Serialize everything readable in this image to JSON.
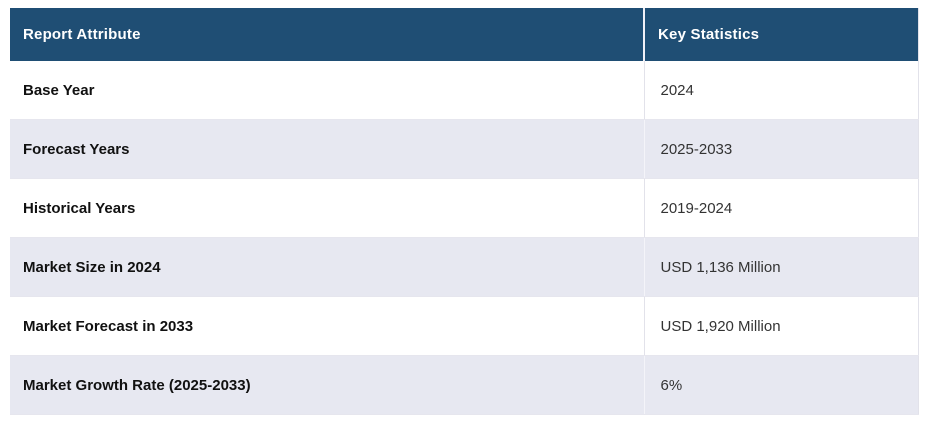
{
  "colors": {
    "header_bg": "#1F4E74",
    "header_text": "#FFFFFF",
    "row_bg": "#FFFFFF",
    "row_alt_bg": "#E7E8F1",
    "border": "#E2E2EA",
    "attribute_text": "#111111",
    "value_text": "#333333"
  },
  "table": {
    "columns": [
      {
        "label": "Report Attribute"
      },
      {
        "label": "Key Statistics"
      }
    ],
    "rows": [
      {
        "attribute": "Base Year",
        "value": "2024"
      },
      {
        "attribute": "Forecast Years",
        "value": "2025-2033"
      },
      {
        "attribute": "Historical Years",
        "value": "2019-2024"
      },
      {
        "attribute": "Market Size in 2024",
        "value": "USD 1,136 Million"
      },
      {
        "attribute": "Market Forecast in 2033",
        "value": "USD 1,920 Million"
      },
      {
        "attribute": "Market Growth Rate (2025-2033)",
        "value": "6%"
      }
    ]
  }
}
